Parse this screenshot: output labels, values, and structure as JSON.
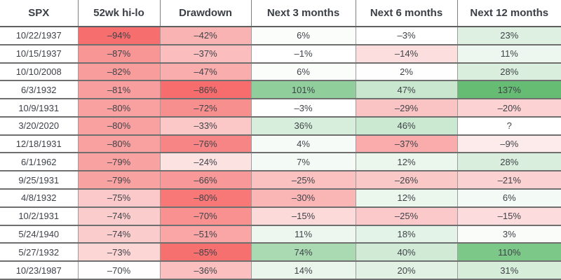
{
  "chart_data": {
    "type": "table",
    "description": "SPX 52-week hi-lo extremes vs drawdown and forward returns heat-map table",
    "columns": [
      "SPX",
      "52wk hi-lo",
      "Drawdown",
      "Next 3 months",
      "Next 6 months",
      "Next 12 months"
    ],
    "rows": [
      {
        "date": "10/22/1937",
        "cells": [
          {
            "text": "–94%",
            "bg": "#f76e6e"
          },
          {
            "text": "–42%",
            "bg": "#fab3b3"
          },
          {
            "text": "6%",
            "bg": "#fafdfa"
          },
          {
            "text": "–3%",
            "bg": "#ffffff"
          },
          {
            "text": "23%",
            "bg": "#def0e1"
          }
        ]
      },
      {
        "date": "10/15/1937",
        "cells": [
          {
            "text": "–87%",
            "bg": "#f89595"
          },
          {
            "text": "–37%",
            "bg": "#fbbdbd"
          },
          {
            "text": "–1%",
            "bg": "#ffffff"
          },
          {
            "text": "–14%",
            "bg": "#fcdede"
          },
          {
            "text": "11%",
            "bg": "#eef7ef"
          }
        ]
      },
      {
        "date": "10/10/2008",
        "cells": [
          {
            "text": "–82%",
            "bg": "#f99c9c"
          },
          {
            "text": "–47%",
            "bg": "#faadad"
          },
          {
            "text": "6%",
            "bg": "#fafdfa"
          },
          {
            "text": "2%",
            "bg": "#fdfefd"
          },
          {
            "text": "28%",
            "bg": "#d9eedc"
          }
        ]
      },
      {
        "date": "6/3/1932",
        "cells": [
          {
            "text": "–81%",
            "bg": "#f99e9e"
          },
          {
            "text": "–86%",
            "bg": "#f76c6c"
          },
          {
            "text": "101%",
            "bg": "#90cf9c"
          },
          {
            "text": "47%",
            "bg": "#c9e7ce"
          },
          {
            "text": "137%",
            "bg": "#66bc72"
          }
        ]
      },
      {
        "date": "10/9/1931",
        "cells": [
          {
            "text": "–80%",
            "bg": "#f9a0a0"
          },
          {
            "text": "–72%",
            "bg": "#f88f8f"
          },
          {
            "text": "–3%",
            "bg": "#ffffff"
          },
          {
            "text": "–29%",
            "bg": "#fbc4c4"
          },
          {
            "text": "–20%",
            "bg": "#fcd2d2"
          }
        ]
      },
      {
        "date": "3/20/2020",
        "cells": [
          {
            "text": "–80%",
            "bg": "#f9a0a0"
          },
          {
            "text": "–33%",
            "bg": "#fcc7c7"
          },
          {
            "text": "36%",
            "bg": "#d8eedc"
          },
          {
            "text": "46%",
            "bg": "#cbe8d0"
          },
          {
            "text": "?",
            "bg": "#ffffff"
          }
        ]
      },
      {
        "date": "12/18/1931",
        "cells": [
          {
            "text": "–80%",
            "bg": "#f9a0a0"
          },
          {
            "text": "–76%",
            "bg": "#f88585"
          },
          {
            "text": "4%",
            "bg": "#f6fbf7"
          },
          {
            "text": "–37%",
            "bg": "#faabab"
          },
          {
            "text": "–9%",
            "bg": "#fdeaea"
          }
        ]
      },
      {
        "date": "6/1/1962",
        "cells": [
          {
            "text": "–79%",
            "bg": "#f9a2a2"
          },
          {
            "text": "–24%",
            "bg": "#fde2e2"
          },
          {
            "text": "7%",
            "bg": "#f4faf5"
          },
          {
            "text": "12%",
            "bg": "#ebf6ed"
          },
          {
            "text": "28%",
            "bg": "#d9eedc"
          }
        ]
      },
      {
        "date": "9/25/1931",
        "cells": [
          {
            "text": "–79%",
            "bg": "#f9a2a2"
          },
          {
            "text": "–66%",
            "bg": "#f99898"
          },
          {
            "text": "–25%",
            "bg": "#fbc1c1"
          },
          {
            "text": "–26%",
            "bg": "#fbc8c8"
          },
          {
            "text": "–21%",
            "bg": "#fcd1d1"
          }
        ]
      },
      {
        "date": "4/8/1932",
        "cells": [
          {
            "text": "–75%",
            "bg": "#fbc9c9"
          },
          {
            "text": "–80%",
            "bg": "#f87878"
          },
          {
            "text": "–30%",
            "bg": "#fab5b5"
          },
          {
            "text": "12%",
            "bg": "#ebf6ed"
          },
          {
            "text": "6%",
            "bg": "#f4faf5"
          }
        ]
      },
      {
        "date": "10/2/1931",
        "cells": [
          {
            "text": "–74%",
            "bg": "#fbcccc"
          },
          {
            "text": "–70%",
            "bg": "#f99191"
          },
          {
            "text": "–15%",
            "bg": "#fcdada"
          },
          {
            "text": "–25%",
            "bg": "#fbc9c9"
          },
          {
            "text": "–15%",
            "bg": "#fcdcdc"
          }
        ]
      },
      {
        "date": "5/24/1940",
        "cells": [
          {
            "text": "–74%",
            "bg": "#fbcccc"
          },
          {
            "text": "–51%",
            "bg": "#faa6a6"
          },
          {
            "text": "11%",
            "bg": "#eef7ef"
          },
          {
            "text": "18%",
            "bg": "#e4f3e7"
          },
          {
            "text": "3%",
            "bg": "#f9fcf9"
          }
        ]
      },
      {
        "date": "5/27/1932",
        "cells": [
          {
            "text": "–73%",
            "bg": "#fcd5d5"
          },
          {
            "text": "–85%",
            "bg": "#f77070"
          },
          {
            "text": "74%",
            "bg": "#a9dab2"
          },
          {
            "text": "40%",
            "bg": "#d0ead5"
          },
          {
            "text": "110%",
            "bg": "#7cc888"
          }
        ]
      },
      {
        "date": "10/23/1987",
        "cells": [
          {
            "text": "–70%",
            "bg": "#fffdfd"
          },
          {
            "text": "–36%",
            "bg": "#fbbfbf"
          },
          {
            "text": "14%",
            "bg": "#eaf6ec"
          },
          {
            "text": "20%",
            "bg": "#e1f2e4"
          },
          {
            "text": "31%",
            "bg": "#d6edd9"
          }
        ]
      }
    ],
    "layout": {
      "legend": "none",
      "grid": "on"
    },
    "colors": {
      "negative_strong": "#f76c6c",
      "positive_strong": "#66bc72",
      "text": "#3f4349",
      "border_horizontal": "#6f6f6f",
      "border_vertical": "#9b9b9b",
      "header_border": "#5f5f5f"
    }
  }
}
